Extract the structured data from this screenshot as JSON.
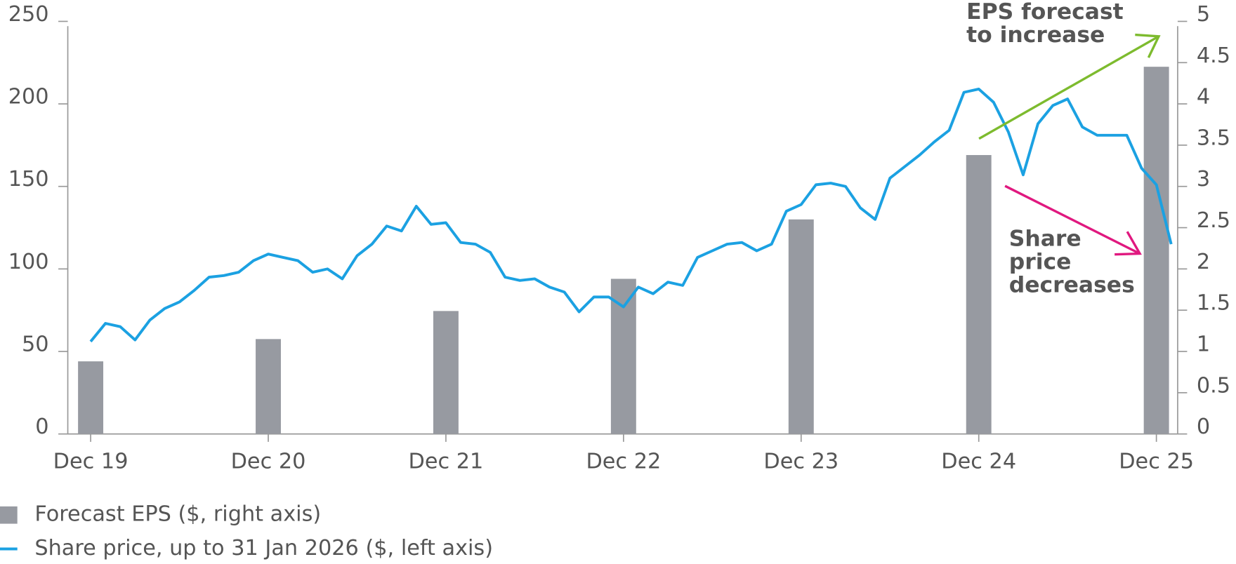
{
  "chart_data": {
    "type": "combo",
    "categories": [
      "Dec 19",
      null,
      null,
      null,
      null,
      null,
      null,
      null,
      null,
      null,
      null,
      null,
      "Dec 20",
      null,
      null,
      null,
      null,
      null,
      null,
      null,
      null,
      null,
      null,
      null,
      "Dec 21",
      null,
      null,
      null,
      null,
      null,
      null,
      null,
      null,
      null,
      null,
      null,
      "Dec 22",
      null,
      null,
      null,
      null,
      null,
      null,
      null,
      null,
      null,
      null,
      null,
      "Dec 23",
      null,
      null,
      null,
      null,
      null,
      null,
      null,
      null,
      null,
      null,
      null,
      "Dec 24",
      null,
      null,
      null,
      null,
      null,
      null,
      null,
      null,
      null,
      null,
      null,
      "Dec 25",
      null
    ],
    "series": [
      {
        "name": "Forecast EPS ($, right axis)",
        "type": "bar",
        "axis": "y2",
        "color": "#979aa1",
        "values": [
          0.88,
          null,
          null,
          null,
          null,
          null,
          null,
          null,
          null,
          null,
          null,
          null,
          1.15,
          null,
          null,
          null,
          null,
          null,
          null,
          null,
          null,
          null,
          null,
          null,
          1.49,
          null,
          null,
          null,
          null,
          null,
          null,
          null,
          null,
          null,
          null,
          null,
          1.88,
          null,
          null,
          null,
          null,
          null,
          null,
          null,
          null,
          null,
          null,
          null,
          2.6,
          null,
          null,
          null,
          null,
          null,
          null,
          null,
          null,
          null,
          null,
          null,
          3.38,
          null,
          null,
          null,
          null,
          null,
          null,
          null,
          null,
          null,
          null,
          null,
          4.45,
          null
        ]
      },
      {
        "name": "Share price, up to 31 Jan 2026 ($, left axis)",
        "type": "line",
        "axis": "y",
        "color": "#1ba1e2",
        "values": [
          56,
          67,
          65,
          57,
          69,
          76,
          80,
          87,
          95,
          96,
          98,
          105,
          109,
          107,
          105,
          98,
          100,
          94,
          108,
          115,
          126,
          123,
          138,
          127,
          128,
          116,
          115,
          110,
          95,
          93,
          94,
          89,
          86,
          74,
          83,
          83,
          77,
          89,
          85,
          92,
          90,
          107,
          111,
          115,
          116,
          111,
          115,
          135,
          139,
          151,
          152,
          150,
          137,
          130,
          155,
          162,
          169,
          177,
          184,
          207,
          209,
          201,
          183,
          157,
          188,
          199,
          203,
          186,
          181,
          181,
          181,
          161,
          151,
          115
        ]
      }
    ],
    "ylim": [
      0,
      250
    ],
    "yticks": [
      0,
      50,
      100,
      150,
      200,
      250
    ],
    "y2lim": [
      0,
      5
    ],
    "y2ticks": [
      0,
      0.5,
      1,
      1.5,
      2,
      2.5,
      3,
      3.5,
      4,
      4.5,
      5
    ],
    "annotations": [
      {
        "lines": [
          "EPS forecast",
          "to increase"
        ],
        "color": "#7dbb2e"
      },
      {
        "lines": [
          "Share",
          "price",
          "decreases"
        ],
        "color": "#e0187f"
      }
    ]
  }
}
